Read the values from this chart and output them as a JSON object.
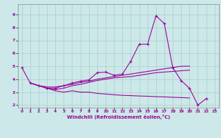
{
  "xlabel": "Windchill (Refroidissement éolien,°C)",
  "background_color": "#cce8e8",
  "grid_color": "#aacccc",
  "line_color": "#990099",
  "xlim": [
    -0.5,
    23.5
  ],
  "ylim": [
    1.8,
    9.8
  ],
  "yticks": [
    2,
    3,
    4,
    5,
    6,
    7,
    8,
    9
  ],
  "xticks": [
    0,
    1,
    2,
    3,
    4,
    5,
    6,
    7,
    8,
    9,
    10,
    11,
    12,
    13,
    14,
    15,
    16,
    17,
    18,
    19,
    20,
    21,
    22,
    23
  ],
  "series": [
    {
      "x": [
        0,
        1,
        2,
        3,
        4,
        5,
        6,
        7,
        8,
        9,
        10,
        11,
        12,
        13,
        14,
        15,
        16,
        17,
        18,
        19,
        20,
        21,
        22
      ],
      "y": [
        4.9,
        3.7,
        3.5,
        3.3,
        3.3,
        3.5,
        3.7,
        3.85,
        3.95,
        4.5,
        4.55,
        4.3,
        4.4,
        5.4,
        6.7,
        6.7,
        8.9,
        8.3,
        4.9,
        3.9,
        3.3,
        2.0,
        2.5
      ],
      "marker": "+"
    },
    {
      "x": [
        1,
        2,
        3,
        4,
        5,
        6,
        7,
        8,
        9,
        10,
        11,
        12,
        13,
        14,
        15,
        16,
        17,
        18,
        19,
        20
      ],
      "y": [
        3.7,
        3.5,
        3.3,
        3.2,
        3.3,
        3.5,
        3.6,
        3.75,
        3.9,
        4.0,
        4.1,
        4.15,
        4.2,
        4.3,
        4.4,
        4.5,
        4.55,
        4.6,
        4.65,
        4.7
      ],
      "marker": null
    },
    {
      "x": [
        1,
        2,
        3,
        4,
        5,
        6,
        7,
        8,
        9,
        10,
        11,
        12,
        13,
        14,
        15,
        16,
        17,
        18,
        19,
        20
      ],
      "y": [
        3.7,
        3.5,
        3.4,
        3.4,
        3.5,
        3.6,
        3.75,
        3.85,
        4.0,
        4.1,
        4.2,
        4.3,
        4.4,
        4.5,
        4.6,
        4.7,
        4.8,
        4.9,
        5.0,
        5.0
      ],
      "marker": null
    },
    {
      "x": [
        1,
        2,
        3,
        4,
        5,
        6,
        7,
        8,
        9,
        10,
        11,
        12,
        13,
        14,
        15,
        16,
        17,
        18,
        19,
        20
      ],
      "y": [
        3.7,
        3.5,
        3.3,
        3.1,
        3.0,
        3.1,
        3.0,
        3.0,
        2.9,
        2.85,
        2.8,
        2.75,
        2.73,
        2.7,
        2.68,
        2.65,
        2.63,
        2.6,
        2.58,
        2.55
      ],
      "marker": null
    }
  ]
}
